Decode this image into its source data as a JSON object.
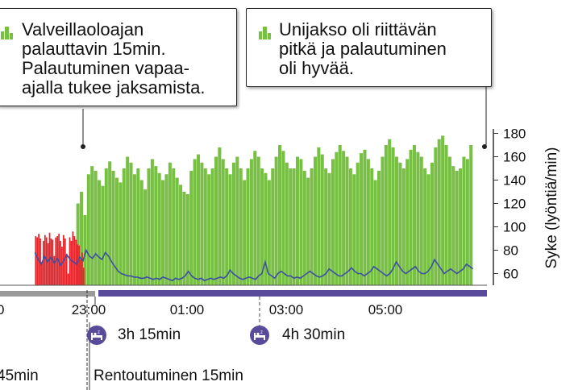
{
  "chart_data": {
    "type": "bar",
    "ylabel": "Syke (lyöntiä/min)",
    "yticks": [
      60,
      80,
      100,
      120,
      140,
      160,
      180
    ],
    "ylim": [
      50,
      185
    ],
    "xticks": [
      "23:00",
      "01:00",
      "03:00",
      "05:00"
    ],
    "x_partial_tick": "0",
    "series": [
      {
        "kind": "stress",
        "color": "#e3262b",
        "segments": [
          {
            "start": "21:55",
            "end": "22:55",
            "values": [
              92,
              91,
              94,
              90,
              70,
              88,
              93,
              91,
              86,
              95,
              90,
              89,
              75,
              91,
              92,
              94,
              88,
              83,
              93,
              90,
              77,
              60,
              91,
              88,
              96,
              92,
              89,
              85,
              84,
              72,
              78,
              65
            ]
          }
        ]
      },
      {
        "kind": "recovery",
        "color": "#78c043",
        "segments": [
          {
            "start": "22:45",
            "end": "06:45",
            "values": [
              120,
              130,
              110,
              145,
              152,
              148,
              140,
              135,
              150,
              156,
              148,
              142,
              138,
              150,
              160,
              155,
              145,
              150,
              140,
              132,
              150,
              158,
              152,
              146,
              140,
              145,
              155,
              150,
              142,
              136,
              130,
              128,
              148,
              158,
              162,
              155,
              150,
              145,
              150,
              160,
              168,
              158,
              150,
              145,
              155,
              160,
              150,
              140,
              150,
              158,
              165,
              160,
              150,
              146,
              140,
              150,
              160,
              170,
              165,
              155,
              150,
              150,
              160,
              158,
              148,
              142,
              150,
              160,
              168,
              162,
              150,
              146,
              158,
              164,
              170,
              165,
              160,
              150,
              145,
              155,
              163,
              166,
              158,
              150,
              140,
              148,
              160,
              170,
              175,
              168,
              160,
              155,
              150,
              158,
              166,
              170,
              164,
              160,
              150,
              145,
              155,
              168,
              175,
              178,
              170,
              160,
              152,
              148,
              150,
              160,
              158,
              170
            ]
          }
        ]
      },
      {
        "kind": "heart_rate",
        "color": "#3d4fa3",
        "x_start": "21:55",
        "x_end": "06:45",
        "values": [
          78,
          72,
          68,
          75,
          70,
          74,
          69,
          73,
          67,
          71,
          76,
          72,
          70,
          68,
          74,
          71,
          80,
          75,
          73,
          77,
          74,
          72,
          78,
          75,
          70,
          66,
          62,
          60,
          59,
          58,
          58,
          57,
          57,
          56,
          56,
          57,
          56,
          55,
          56,
          55,
          57,
          56,
          55,
          54,
          56,
          55,
          56,
          58,
          62,
          58,
          56,
          55,
          56,
          54,
          55,
          56,
          55,
          56,
          57,
          56,
          58,
          63,
          60,
          58,
          56,
          55,
          56,
          57,
          56,
          55,
          58,
          60,
          70,
          60,
          58,
          56,
          60,
          62,
          60,
          58,
          58,
          56,
          57,
          56,
          58,
          60,
          62,
          60,
          58,
          57,
          58,
          60,
          64,
          62,
          60,
          58,
          58,
          60,
          62,
          65,
          62,
          60,
          60,
          58,
          60,
          62,
          66,
          64,
          62,
          60,
          58,
          60,
          64,
          70,
          66,
          62,
          60,
          62,
          64,
          66,
          62,
          60,
          60,
          62,
          66,
          72,
          68,
          64,
          60,
          62,
          64,
          62,
          60,
          62,
          64,
          68,
          66,
          64
        ]
      }
    ]
  },
  "callouts": {
    "left": {
      "icon": "green-bar-icon",
      "text": "Valveillaoloajan\npalauttavin 15min.\nPalautuminen vapaa-\najalla tukee jaksamista."
    },
    "right": {
      "icon": "green-bar-icon",
      "text": "Unijakso oli riittävän\npitkä ja palautuminen\noli hyvää."
    }
  },
  "sleep_periods": [
    {
      "label": "3h 15min",
      "icon": "sleep-bed-icon"
    },
    {
      "label": "4h 30min",
      "icon": "sleep-bed-icon"
    }
  ],
  "bottom_texts": {
    "left_partial": "45min",
    "right": "Rentoutuminen 15min"
  },
  "colors": {
    "awake_bar": "#9a9a9a",
    "sleep_bar": "#5a4a9c"
  }
}
